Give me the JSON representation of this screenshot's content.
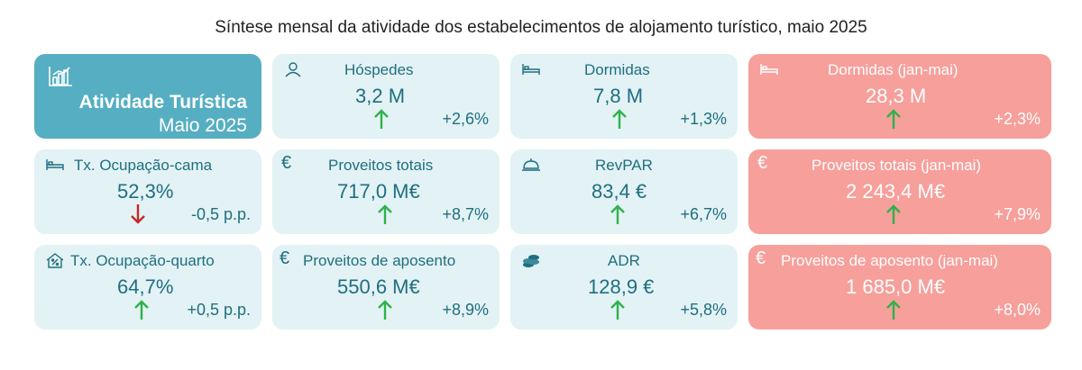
{
  "title": "Síntese mensal da atividade dos estabelecimentos de alojamento turístico, maio 2025",
  "hero": {
    "line1": "Atividade Turística",
    "line2": "Maio 2025",
    "icon": "bar-chart-icon"
  },
  "cards": [
    {
      "label": "Hóspedes",
      "value": "3,2 M",
      "change": "+2,6%",
      "trend": "up",
      "icon": "person-icon"
    },
    {
      "label": "Dormidas",
      "value": "7,8 M",
      "change": "+1,3%",
      "trend": "up",
      "icon": "bed-icon"
    },
    {
      "label": "Dormidas (jan-mai)",
      "value": "28,3 M",
      "change": "+2,3%",
      "trend": "up",
      "icon": "bed-icon"
    },
    {
      "label": "Tx. Ocupação-cama",
      "value": "52,3%",
      "change": "-0,5 p.p.",
      "trend": "down",
      "icon": "bed-icon"
    },
    {
      "label": "Proveitos totais",
      "value": "717,0 M€",
      "change": "+8,7%",
      "trend": "up",
      "icon": "euro-icon"
    },
    {
      "label": "RevPAR",
      "value": "83,4 €",
      "change": "+6,7%",
      "trend": "up",
      "icon": "service-bell-icon"
    },
    {
      "label": "Proveitos totais (jan-mai)",
      "value": "2 243,4 M€",
      "change": "+7,9%",
      "trend": "up",
      "icon": "euro-icon"
    },
    {
      "label": "Tx. Ocupação-quarto",
      "value": "64,7%",
      "change": "+0,5 p.p.",
      "trend": "up",
      "icon": "house-percent-icon"
    },
    {
      "label": "Proveitos de aposento",
      "value": "550,6 M€",
      "change": "+8,9%",
      "trend": "up",
      "icon": "euro-icon"
    },
    {
      "label": "ADR",
      "value": "128,9 €",
      "change": "+5,8%",
      "trend": "up",
      "icon": "coins-icon"
    },
    {
      "label": "Proveitos de aposento (jan-mai)",
      "value": "1 685,0 M€",
      "change": "+8,0%",
      "trend": "up",
      "icon": "euro-icon"
    }
  ],
  "colors": {
    "light_card": "#e3f2f5",
    "pink_card": "#f79f9b",
    "hero_card": "#56aec2",
    "value_text": "#1f6f80",
    "up_arrow": "#2fb24c",
    "down_arrow": "#c62828"
  }
}
